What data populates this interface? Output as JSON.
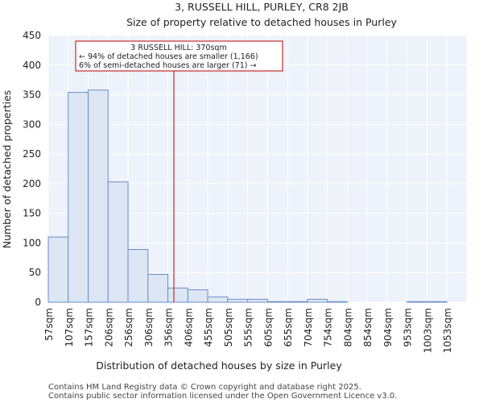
{
  "colors": {
    "bar_fill": "#dce6f5",
    "bar_stroke": "#6a8fc8",
    "marker": "#c00000",
    "grid": "#d9e0ee",
    "plot_bg": "#eef2fa"
  },
  "chart_data": {
    "type": "bar",
    "title": "3, RUSSELL HILL, PURLEY, CR8 2JB",
    "subtitle": "Size of property relative to detached houses in Purley",
    "xlabel": "Distribution of detached houses by size in Purley",
    "ylabel": "Number of detached properties",
    "ylim": [
      0,
      450
    ],
    "yticks": [
      0,
      50,
      100,
      150,
      200,
      250,
      300,
      350,
      400,
      450
    ],
    "grid": true,
    "categories": [
      "57sqm",
      "107sqm",
      "157sqm",
      "206sqm",
      "256sqm",
      "306sqm",
      "356sqm",
      "406sqm",
      "455sqm",
      "505sqm",
      "555sqm",
      "605sqm",
      "655sqm",
      "704sqm",
      "754sqm",
      "804sqm",
      "854sqm",
      "904sqm",
      "953sqm",
      "1003sqm",
      "1053sqm"
    ],
    "values": [
      110,
      354,
      358,
      203,
      89,
      47,
      24,
      21,
      9,
      5,
      5,
      1,
      1,
      5,
      1,
      0,
      0,
      0,
      1,
      1,
      0
    ],
    "marker": {
      "value_index": 6.3,
      "label": "3 RUSSELL HILL: 370sqm"
    },
    "annotation": {
      "line1": "3 RUSSELL HILL: 370sqm",
      "line2": "← 94% of detached houses are smaller (1,166)",
      "line3": "6% of semi-detached houses are larger (71) →"
    }
  },
  "footer": {
    "line1": "Contains HM Land Registry data © Crown copyright and database right 2025.",
    "line2": "Contains public sector information licensed under the Open Government Licence v3.0."
  }
}
